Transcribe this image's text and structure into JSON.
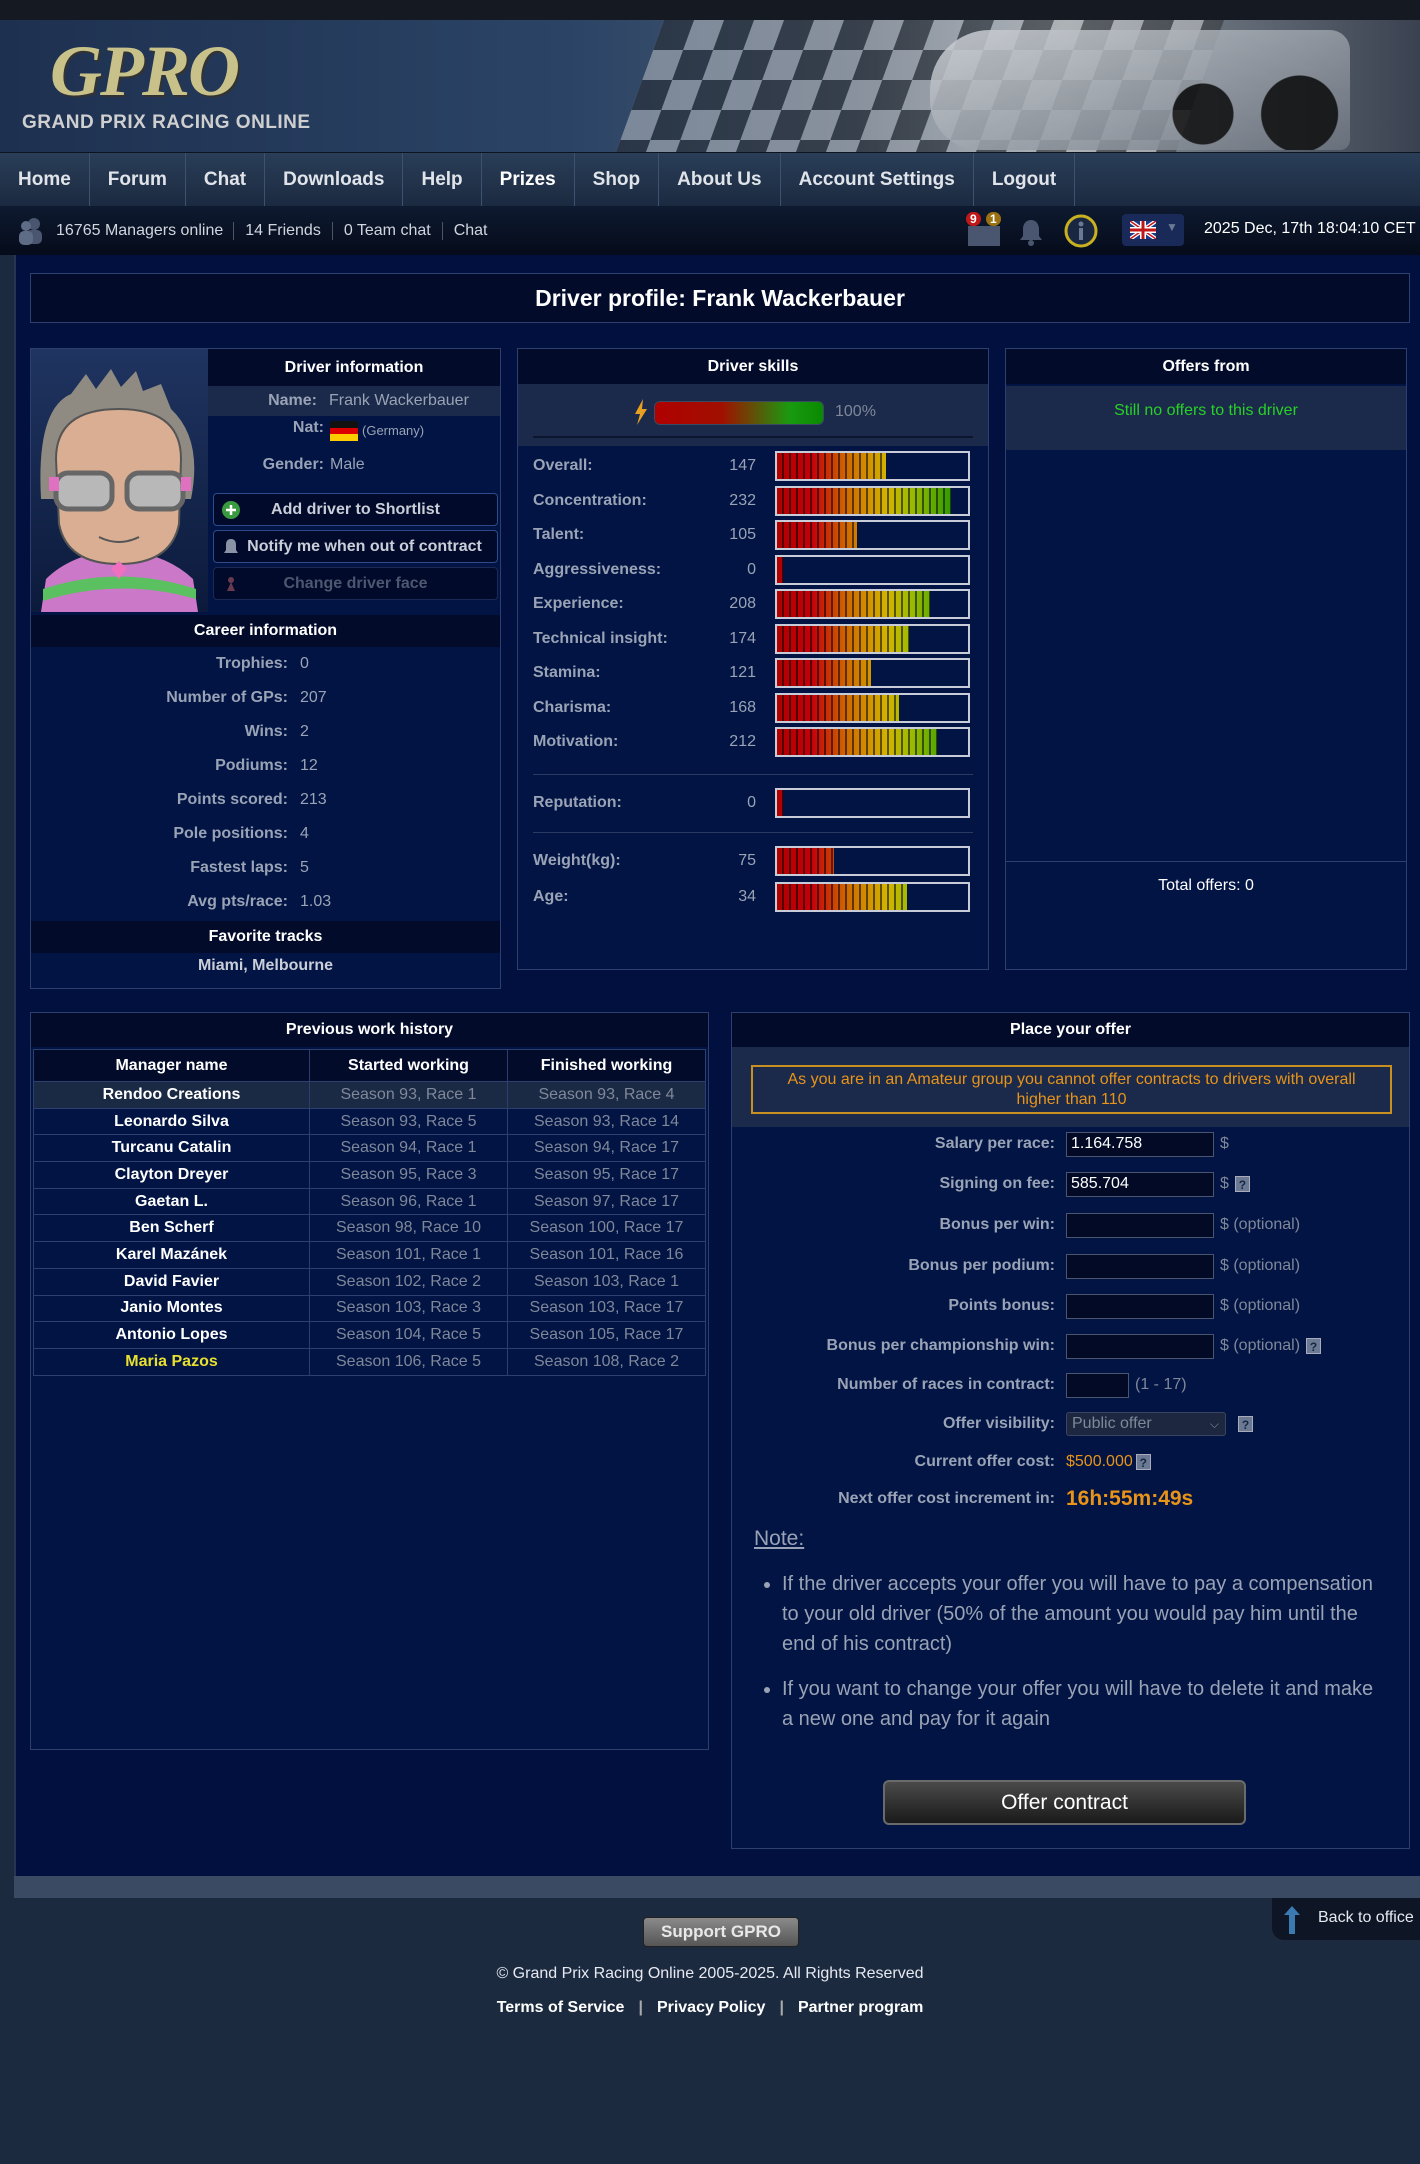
{
  "logo": {
    "text": "GPRO",
    "subtitle": "GRAND PRIX RACING ONLINE"
  },
  "nav": [
    {
      "label": "Home"
    },
    {
      "label": "Forum"
    },
    {
      "label": "Chat"
    },
    {
      "label": "Downloads"
    },
    {
      "label": "Help"
    },
    {
      "label": "Prizes"
    },
    {
      "label": "Shop"
    },
    {
      "label": "About Us"
    },
    {
      "label": "Account Settings"
    },
    {
      "label": "Logout"
    }
  ],
  "status": {
    "managers_online": "16765 Managers online",
    "friends": "14 Friends",
    "team_chat": "0 Team chat",
    "chat": "Chat",
    "messages_badge": "9",
    "messages_badge2": "1",
    "datetime": "2025 Dec, 17th 18:04:10 CET"
  },
  "page_title": "Driver profile: Frank Wackerbauer",
  "driver_info": {
    "title": "Driver information",
    "name_label": "Name:",
    "name": "Frank Wackerbauer",
    "nat_label": "Nat:",
    "nat": "(Germany)",
    "gender_label": "Gender:",
    "gender": "Male",
    "buttons": {
      "shortlist": "Add driver to Shortlist",
      "notify": "Notify me when out of contract",
      "face": "Change driver face"
    }
  },
  "career": {
    "title": "Career information",
    "rows": [
      {
        "label": "Trophies:",
        "value": "0"
      },
      {
        "label": "Number of GPs:",
        "value": "207"
      },
      {
        "label": "Wins:",
        "value": "2"
      },
      {
        "label": "Podiums:",
        "value": "12"
      },
      {
        "label": "Points scored:",
        "value": "213"
      },
      {
        "label": "Pole positions:",
        "value": "4"
      },
      {
        "label": "Fastest laps:",
        "value": "5"
      },
      {
        "label": "Avg pts/race:",
        "value": "1.03"
      }
    ],
    "fav_title": "Favorite tracks",
    "fav": "Miami, Melbourne"
  },
  "skills": {
    "title": "Driver skills",
    "energy": "100%",
    "energy_level": 1.0,
    "rows": [
      {
        "label": "Overall:",
        "value": "147",
        "level": 0.57
      },
      {
        "label": "Concentration:",
        "value": "232",
        "level": 0.91
      },
      {
        "label": "Talent:",
        "value": "105",
        "level": 0.42
      },
      {
        "label": "Aggressiveness:",
        "value": "0",
        "level": 0.03
      },
      {
        "label": "Experience:",
        "value": "208",
        "level": 0.8
      },
      {
        "label": "Technical insight:",
        "value": "174",
        "level": 0.69
      },
      {
        "label": "Stamina:",
        "value": "121",
        "level": 0.49
      },
      {
        "label": "Charisma:",
        "value": "168",
        "level": 0.64
      },
      {
        "label": "Motivation:",
        "value": "212",
        "level": 0.84
      }
    ],
    "reputation": {
      "label": "Reputation:",
      "value": "0",
      "level": 0.03
    },
    "physical": [
      {
        "label": "Weight(kg):",
        "value": "75",
        "level": 0.3
      },
      {
        "label": "Age:",
        "value": "34",
        "level": 0.68
      }
    ]
  },
  "offers": {
    "title": "Offers from",
    "empty": "Still no offers to this driver",
    "total": "Total offers: 0"
  },
  "history": {
    "title": "Previous work history",
    "headers": [
      "Manager name",
      "Started working",
      "Finished working"
    ],
    "rows": [
      [
        "Rendoo Creations",
        "Season 93, Race 1",
        "Season 93, Race 4"
      ],
      [
        "Leonardo Silva",
        "Season 93, Race 5",
        "Season 93, Race 14"
      ],
      [
        "Turcanu Catalin",
        "Season 94, Race 1",
        "Season 94, Race 17"
      ],
      [
        "Clayton Dreyer",
        "Season 95, Race 3",
        "Season 95, Race 17"
      ],
      [
        "Gaetan L.",
        "Season 96, Race 1",
        "Season 97, Race 17"
      ],
      [
        "Ben Scherf",
        "Season 98, Race 10",
        "Season 100, Race 17"
      ],
      [
        "Karel Mazánek",
        "Season 101, Race 1",
        "Season 101, Race 16"
      ],
      [
        "David Favier",
        "Season 102, Race 2",
        "Season 103, Race 1"
      ],
      [
        "Janio Montes",
        "Season 103, Race 3",
        "Season 103, Race 17"
      ],
      [
        "Antonio Lopes",
        "Season 104, Race 5",
        "Season 105, Race 17"
      ],
      [
        "Maria Pazos",
        "Season 106, Race 5",
        "Season 108, Race 2"
      ]
    ]
  },
  "offer": {
    "title": "Place your offer",
    "warning": "As you are in an Amateur group you cannot offer contracts to drivers with overall higher than 110",
    "salary_label": "Salary per race:",
    "salary": "1.164.758",
    "signing_label": "Signing on fee:",
    "signing": "585.704",
    "bonus_win_label": "Bonus per win:",
    "bonus_podium_label": "Bonus per podium:",
    "points_bonus_label": "Points bonus:",
    "bonus_champ_label": "Bonus per championship win:",
    "races_label": "Number of races in contract:",
    "races_range": "(1 - 17)",
    "visibility_label": "Offer visibility:",
    "visibility": "Public offer",
    "cost_label": "Current offer cost:",
    "cost": "$500.000",
    "next_label": "Next offer cost increment in:",
    "next": "16h:55m:49s",
    "currency": "$",
    "optional": "$ (optional)",
    "help": "?",
    "note_title": "Note:",
    "notes": [
      "If the driver accepts your offer you will have to pay a compensation to your old driver (50% of the amount you would pay him until the end of his contract)",
      "If you want to change your offer you will have to delete it and make a new one and pay for it again"
    ],
    "submit": "Offer contract"
  },
  "footer": {
    "support": "Support GPRO",
    "copyright": "© Grand Prix Racing Online 2005-2025. All Rights Reserved",
    "links": [
      "Terms of Service",
      "Privacy Policy",
      "Partner program"
    ],
    "back": "Back to office"
  },
  "colors": {
    "accent_orange": "#e8941a",
    "highlight_yellow": "#e8e030",
    "no_offers_green": "#28d028"
  }
}
